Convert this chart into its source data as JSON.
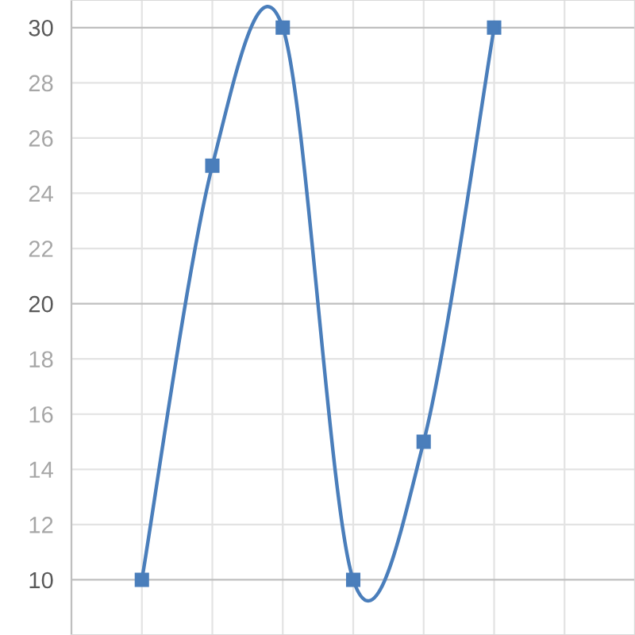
{
  "chart_data": {
    "type": "line",
    "categories": [
      null,
      null,
      null,
      null,
      null,
      null
    ],
    "series": [
      {
        "color": "#4a7ebb",
        "values": [
          10,
          25,
          30,
          10,
          15,
          30
        ]
      }
    ],
    "ylim": [
      8,
      31
    ],
    "yticks": [
      10,
      12,
      14,
      16,
      18,
      20,
      22,
      24,
      26,
      28,
      30
    ],
    "tick_labels": "y",
    "grid": true,
    "marker": "square",
    "line_style": "solid"
  }
}
